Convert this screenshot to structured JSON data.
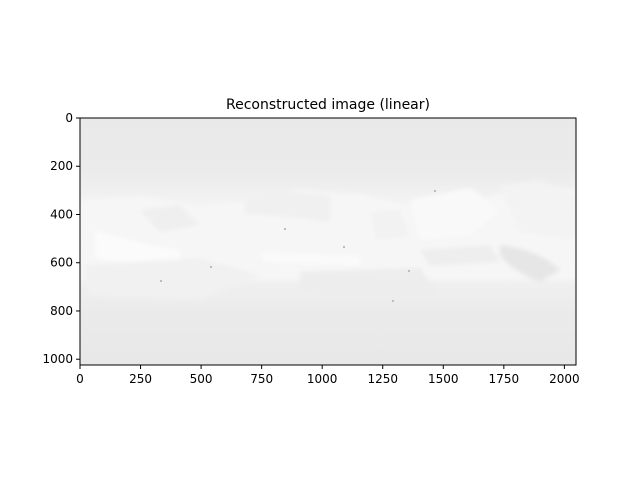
{
  "chart_data": {
    "type": "heatmap",
    "title": "Reconstructed image (linear)",
    "colormap": "gray",
    "origin": "upper",
    "xlim": [
      0,
      2048
    ],
    "ylim": [
      1024,
      0
    ],
    "x_ticks": [
      0,
      250,
      500,
      750,
      1000,
      1250,
      1500,
      1750,
      2000
    ],
    "y_ticks": [
      0,
      200,
      400,
      600,
      800,
      1000
    ],
    "grid": false,
    "colors": {
      "background_gray": "#e9e9e9",
      "bright_band": "#f7f7f7",
      "axis": "#000000"
    }
  }
}
